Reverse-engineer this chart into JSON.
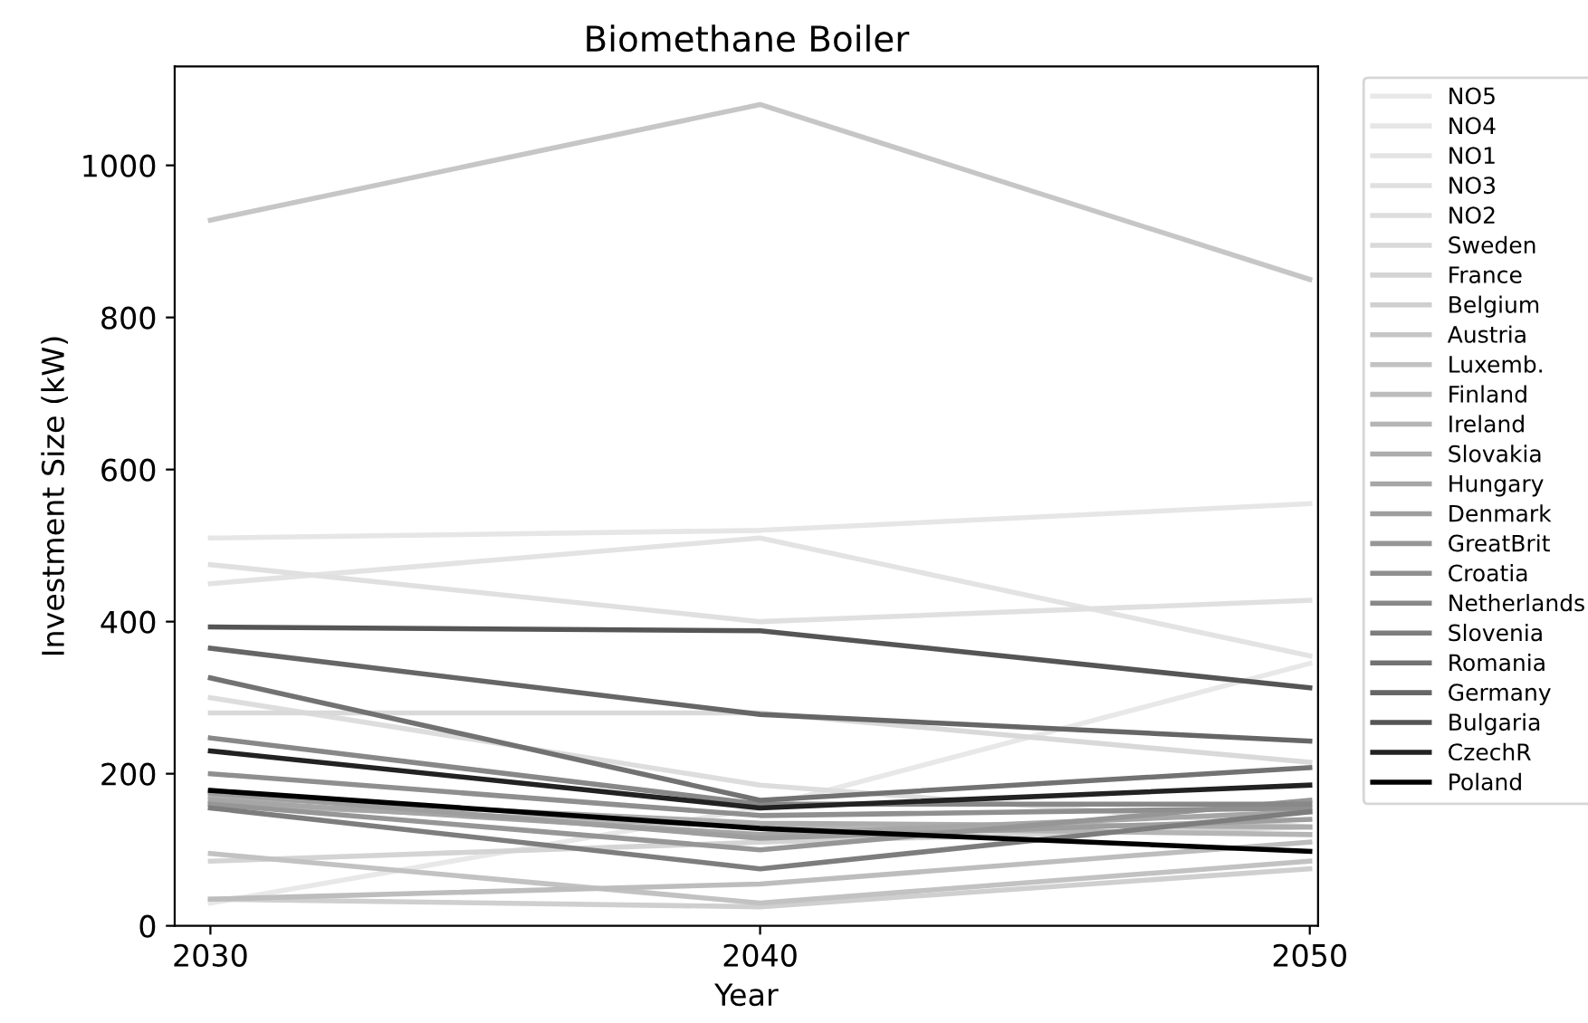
{
  "chart_data": {
    "type": "line",
    "title": "Biomethane Boiler",
    "xlabel": "Year",
    "ylabel": "Investment Size (kW)",
    "x": [
      2030,
      2040,
      2050
    ],
    "xlim": [
      2029.35,
      2050.15
    ],
    "xticks": [
      2030,
      2040,
      2050
    ],
    "ylim": [
      0,
      1130
    ],
    "yticks": [
      0,
      200,
      400,
      600,
      800,
      1000
    ],
    "grid": false,
    "legend": "right",
    "marker": "none",
    "line_style": "solid",
    "series": [
      {
        "name": "NO5",
        "color": "#e8e8e8",
        "values": [
          30,
          155,
          345
        ]
      },
      {
        "name": "NO4",
        "color": "#e6e6e6",
        "values": [
          510,
          520,
          555
        ]
      },
      {
        "name": "NO1",
        "color": "#e3e3e3",
        "values": [
          450,
          510,
          355
        ]
      },
      {
        "name": "NO3",
        "color": "#e0e0e0",
        "values": [
          475,
          400,
          428
        ]
      },
      {
        "name": "NO2",
        "color": "#dddddd",
        "values": [
          300,
          185,
          130
        ]
      },
      {
        "name": "Sweden",
        "color": "#d9d9d9",
        "values": [
          280,
          280,
          215
        ]
      },
      {
        "name": "France",
        "color": "#d4d4d4",
        "values": [
          85,
          110,
          130
        ]
      },
      {
        "name": "Belgium",
        "color": "#cfcfcf",
        "values": [
          35,
          25,
          75
        ]
      },
      {
        "name": "Austria",
        "color": "#c6c6c6",
        "values": [
          928,
          1080,
          850
        ]
      },
      {
        "name": "Luxemb.",
        "color": "#c2c2c2",
        "values": [
          95,
          30,
          85
        ]
      },
      {
        "name": "Finland",
        "color": "#bdbdbd",
        "values": [
          35,
          55,
          110
        ]
      },
      {
        "name": "Ireland",
        "color": "#b5b5b5",
        "values": [
          160,
          130,
          120
        ]
      },
      {
        "name": "Slovakia",
        "color": "#adadad",
        "values": [
          170,
          135,
          130
        ]
      },
      {
        "name": "Hungary",
        "color": "#a6a6a6",
        "values": [
          165,
          120,
          150
        ]
      },
      {
        "name": "Denmark",
        "color": "#9e9e9e",
        "values": [
          175,
          115,
          140
        ]
      },
      {
        "name": "GreatBrit",
        "color": "#969696",
        "values": [
          160,
          100,
          165
        ]
      },
      {
        "name": "Croatia",
        "color": "#8f8f8f",
        "values": [
          200,
          145,
          155
        ]
      },
      {
        "name": "Netherlands",
        "color": "#888888",
        "values": [
          247,
          160,
          160
        ]
      },
      {
        "name": "Slovenia",
        "color": "#7d7d7d",
        "values": [
          155,
          75,
          150
        ]
      },
      {
        "name": "Romania",
        "color": "#727272",
        "values": [
          326,
          165,
          208
        ]
      },
      {
        "name": "Germany",
        "color": "#666666",
        "values": [
          365,
          278,
          243
        ]
      },
      {
        "name": "Bulgaria",
        "color": "#555555",
        "values": [
          393,
          388,
          313
        ]
      },
      {
        "name": "CzechR",
        "color": "#222222",
        "values": [
          230,
          155,
          185
        ]
      },
      {
        "name": "Poland",
        "color": "#000000",
        "values": [
          178,
          128,
          98
        ]
      }
    ]
  }
}
